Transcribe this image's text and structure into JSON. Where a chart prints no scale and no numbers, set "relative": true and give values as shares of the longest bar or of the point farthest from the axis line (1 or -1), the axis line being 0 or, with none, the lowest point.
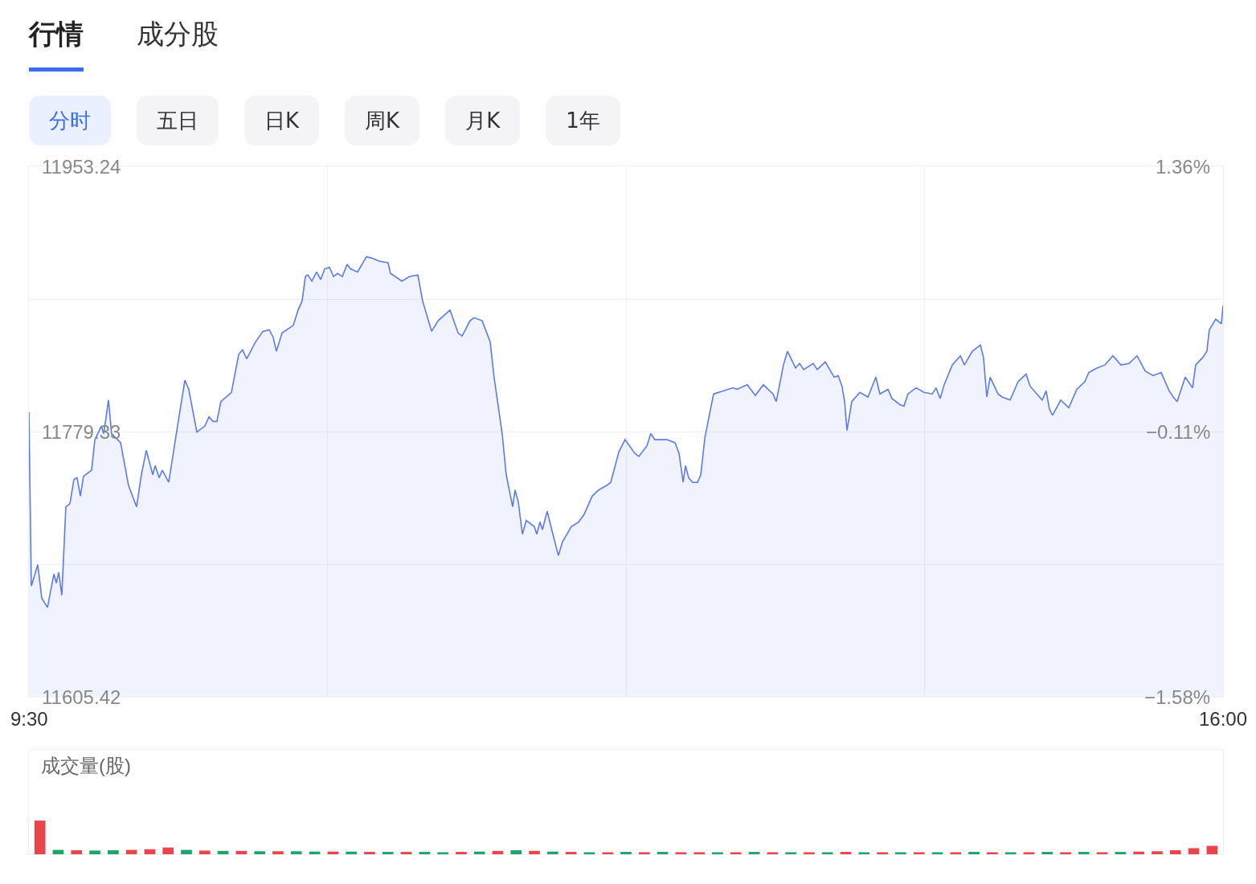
{
  "chart_data": [
    {
      "type": "other",
      "annotations": [
        "行情",
        "成分股",
        "分时",
        "五日",
        "日K",
        "周K",
        "月K",
        "1年"
      ]
    },
    {
      "type": "area",
      "grid": true,
      "marker": "none",
      "line_style": "solid",
      "x": [
        9.5,
        9.513,
        9.548,
        9.57,
        9.601,
        9.636,
        9.649,
        9.662,
        9.679,
        9.701,
        9.723,
        9.745,
        9.762,
        9.78,
        9.797,
        9.841,
        9.859,
        9.894,
        9.907,
        9.933,
        9.95,
        9.999,
        10.042,
        10.086,
        10.112,
        10.139,
        10.174,
        10.187,
        10.209,
        10.226,
        10.261,
        10.305,
        10.349,
        10.37,
        10.414,
        10.458,
        10.48,
        10.502,
        10.523,
        10.545,
        10.602,
        10.642,
        10.663,
        10.685,
        10.733,
        10.773,
        10.808,
        10.83,
        10.847,
        10.878,
        10.939,
        10.965,
        10.987,
        11.005,
        11.018,
        11.04,
        11.066,
        11.088,
        11.11,
        11.136,
        11.158,
        11.18,
        11.206,
        11.232,
        11.25,
        11.289,
        11.337,
        11.368,
        11.407,
        11.455,
        11.468,
        11.53,
        11.573,
        11.617,
        11.643,
        11.692,
        11.727,
        11.792,
        11.836,
        11.858,
        11.901,
        11.923,
        11.967,
        12.011,
        12.032,
        12.076,
        12.098,
        12.133,
        12.146,
        12.164,
        12.186,
        12.207,
        12.251,
        12.264,
        12.282,
        12.295,
        12.321,
        12.352,
        12.382,
        12.404,
        12.452,
        12.492,
        12.522,
        12.566,
        12.601,
        12.645,
        12.667,
        12.711,
        12.745,
        12.798,
        12.82,
        12.864,
        12.885,
        12.907,
        12.973,
        13.017,
        13.039,
        13.061,
        13.074,
        13.091,
        13.113,
        13.139,
        13.157,
        13.179,
        13.205,
        13.227,
        13.279,
        13.332,
        13.354,
        13.41,
        13.454,
        13.498,
        13.55,
        13.568,
        13.607,
        13.629,
        13.673,
        13.695,
        13.717,
        13.769,
        13.791,
        13.835,
        13.883,
        13.905,
        13.926,
        13.94,
        13.953,
        13.979,
        14.023,
        14.067,
        14.11,
        14.132,
        14.176,
        14.198,
        14.241,
        14.263,
        14.285,
        14.329,
        14.373,
        14.417,
        14.438,
        14.46,
        14.482,
        14.526,
        14.57,
        14.592,
        14.635,
        14.679,
        14.696,
        14.714,
        14.732,
        14.775,
        14.797,
        14.841,
        14.884,
        14.928,
        14.95,
        15.015,
        15.037,
        15.055,
        15.072,
        15.116,
        15.16,
        15.204,
        15.247,
        15.269,
        15.313,
        15.357,
        15.4,
        15.444,
        15.488,
        15.532,
        15.576,
        15.619,
        15.663,
        15.707,
        15.729,
        15.75,
        15.794,
        15.834,
        15.851,
        15.89,
        15.912,
        15.925,
        15.96,
        15.991,
        16.0
      ],
      "series": [
        {
          "color": "#5b7be8",
          "values": [
            11792,
            11678,
            11692,
            11670,
            11664,
            11686,
            11680,
            11687,
            11672,
            11730,
            11732,
            11748,
            11749,
            11737,
            11750,
            11754,
            11774,
            11783,
            11778,
            11800,
            11778,
            11772,
            11744,
            11730,
            11751,
            11767,
            11751,
            11757,
            11749,
            11754,
            11746,
            11780,
            11813,
            11807,
            11779,
            11783,
            11789,
            11786,
            11786,
            11799,
            11805,
            11830,
            11833,
            11827,
            11838,
            11845,
            11846,
            11841,
            11832,
            11844,
            11849,
            11859,
            11865,
            11881,
            11882,
            11878,
            11884,
            11879,
            11886,
            11887,
            11881,
            11883,
            11881,
            11889,
            11886,
            11884,
            11894,
            11893,
            11891,
            11890,
            11883,
            11878,
            11881,
            11882,
            11865,
            11845,
            11852,
            11859,
            11844,
            11842,
            11852,
            11854,
            11852,
            11838,
            11815,
            11778,
            11751,
            11730,
            11741,
            11733,
            11712,
            11721,
            11717,
            11712,
            11720,
            11715,
            11727,
            11712,
            11698,
            11707,
            11717,
            11720,
            11725,
            11737,
            11741,
            11744,
            11746,
            11766,
            11774,
            11765,
            11763,
            11770,
            11778,
            11774,
            11774,
            11772,
            11765,
            11746,
            11757,
            11749,
            11746,
            11746,
            11751,
            11775,
            11791,
            11804,
            11806,
            11808,
            11807,
            11810,
            11803,
            11810,
            11804,
            11799,
            11823,
            11832,
            11821,
            11824,
            11820,
            11824,
            11820,
            11825,
            11815,
            11816,
            11809,
            11799,
            11780,
            11799,
            11805,
            11802,
            11815,
            11804,
            11807,
            11801,
            11797,
            11796,
            11804,
            11808,
            11805,
            11804,
            11808,
            11801,
            11810,
            11823,
            11829,
            11823,
            11832,
            11836,
            11828,
            11802,
            11815,
            11804,
            11802,
            11800,
            11812,
            11817,
            11809,
            11800,
            11806,
            11794,
            11790,
            11800,
            11795,
            11807,
            11812,
            11818,
            11821,
            11823,
            11829,
            11823,
            11824,
            11829,
            11819,
            11816,
            11818,
            11806,
            11802,
            11799,
            11815,
            11808,
            11823,
            11828,
            11832,
            11846,
            11853,
            11850,
            11862
          ]
        }
      ],
      "xlim": [
        9.5,
        16
      ],
      "xticks": [
        {
          "value": 9.5,
          "label": "9:30"
        },
        {
          "value": 11.125,
          "label": null
        },
        {
          "value": 12.75,
          "label": null
        },
        {
          "value": 14.375,
          "label": null
        },
        {
          "value": 16,
          "label": "16:00"
        }
      ],
      "ylim": [
        11605.42,
        11953.24
      ],
      "yticks": [
        11605.42,
        {
          "value": 11692.375,
          "label": null
        },
        11779.33,
        {
          "value": 11866.285,
          "label": null
        },
        11953.24
      ],
      "y2lim": [
        -1.58,
        1.36
      ],
      "y2ticks": [
        {
          "value": -1.58,
          "label": "−1.58%"
        },
        {
          "value": -0.11,
          "label": "−0.11%"
        },
        {
          "value": 1.36,
          "label": "1.36%"
        }
      ]
    },
    {
      "type": "bar",
      "relative": true,
      "title": "成交量(股)",
      "categories": [
        null,
        null,
        null,
        null,
        null,
        null,
        null,
        null,
        null,
        null,
        null,
        null,
        null,
        null,
        null,
        null,
        null,
        null,
        null,
        null,
        null,
        null,
        null,
        null,
        null,
        null,
        null,
        null,
        null,
        null,
        null,
        null,
        null,
        null,
        null,
        null,
        null,
        null,
        null,
        null,
        null,
        null,
        null,
        null,
        null,
        null,
        null,
        null,
        null,
        null,
        null,
        null,
        null,
        null,
        null,
        null,
        null,
        null,
        null,
        null,
        null,
        null,
        null,
        null,
        null
      ],
      "values": [
        1,
        0.13,
        0.12,
        0.11,
        0.12,
        0.13,
        0.15,
        0.2,
        0.13,
        0.11,
        0.1,
        0.1,
        0.09,
        0.09,
        0.09,
        0.08,
        0.08,
        0.08,
        0.07,
        0.07,
        0.07,
        0.07,
        0.06,
        0.07,
        0.08,
        0.1,
        0.12,
        0.1,
        0.08,
        0.07,
        0.06,
        0.06,
        0.07,
        0.06,
        0.07,
        0.06,
        0.06,
        0.06,
        0.06,
        0.07,
        0.06,
        0.06,
        0.06,
        0.06,
        0.07,
        0.06,
        0.06,
        0.06,
        0.06,
        0.06,
        0.06,
        0.07,
        0.06,
        0.06,
        0.06,
        0.07,
        0.06,
        0.07,
        0.06,
        0.07,
        0.08,
        0.09,
        0.12,
        0.18,
        0.25
      ],
      "colors": [
        "#e8464a",
        "#1fa56a",
        "#e8464a",
        "#1fa56a",
        "#1fa56a",
        "#e8464a",
        "#e8464a",
        "#e8464a",
        "#1fa56a",
        "#e8464a",
        "#1fa56a",
        "#e8464a",
        "#1fa56a",
        "#e8464a",
        "#1fa56a",
        "#1fa56a",
        "#e8464a",
        "#1fa56a",
        "#e8464a",
        "#1fa56a",
        "#e8464a",
        "#1fa56a",
        "#1fa56a",
        "#e8464a",
        "#1fa56a",
        "#e8464a",
        "#1fa56a",
        "#e8464a",
        "#1fa56a",
        "#e8464a",
        "#1fa56a",
        "#e8464a",
        "#1fa56a",
        "#e8464a",
        "#1fa56a",
        "#e8464a",
        "#e8464a",
        "#1fa56a",
        "#e8464a",
        "#1fa56a",
        "#e8464a",
        "#1fa56a",
        "#e8464a",
        "#1fa56a",
        "#e8464a",
        "#1fa56a",
        "#e8464a",
        "#1fa56a",
        "#e8464a",
        "#1fa56a",
        "#e8464a",
        "#1fa56a",
        "#e8464a",
        "#1fa56a",
        "#e8464a",
        "#1fa56a",
        "#e8464a",
        "#1fa56a",
        "#e8464a",
        "#1fa56a",
        "#e8464a",
        "#e8464a",
        "#e8464a",
        "#e8464a",
        "#e8464a"
      ]
    }
  ]
}
